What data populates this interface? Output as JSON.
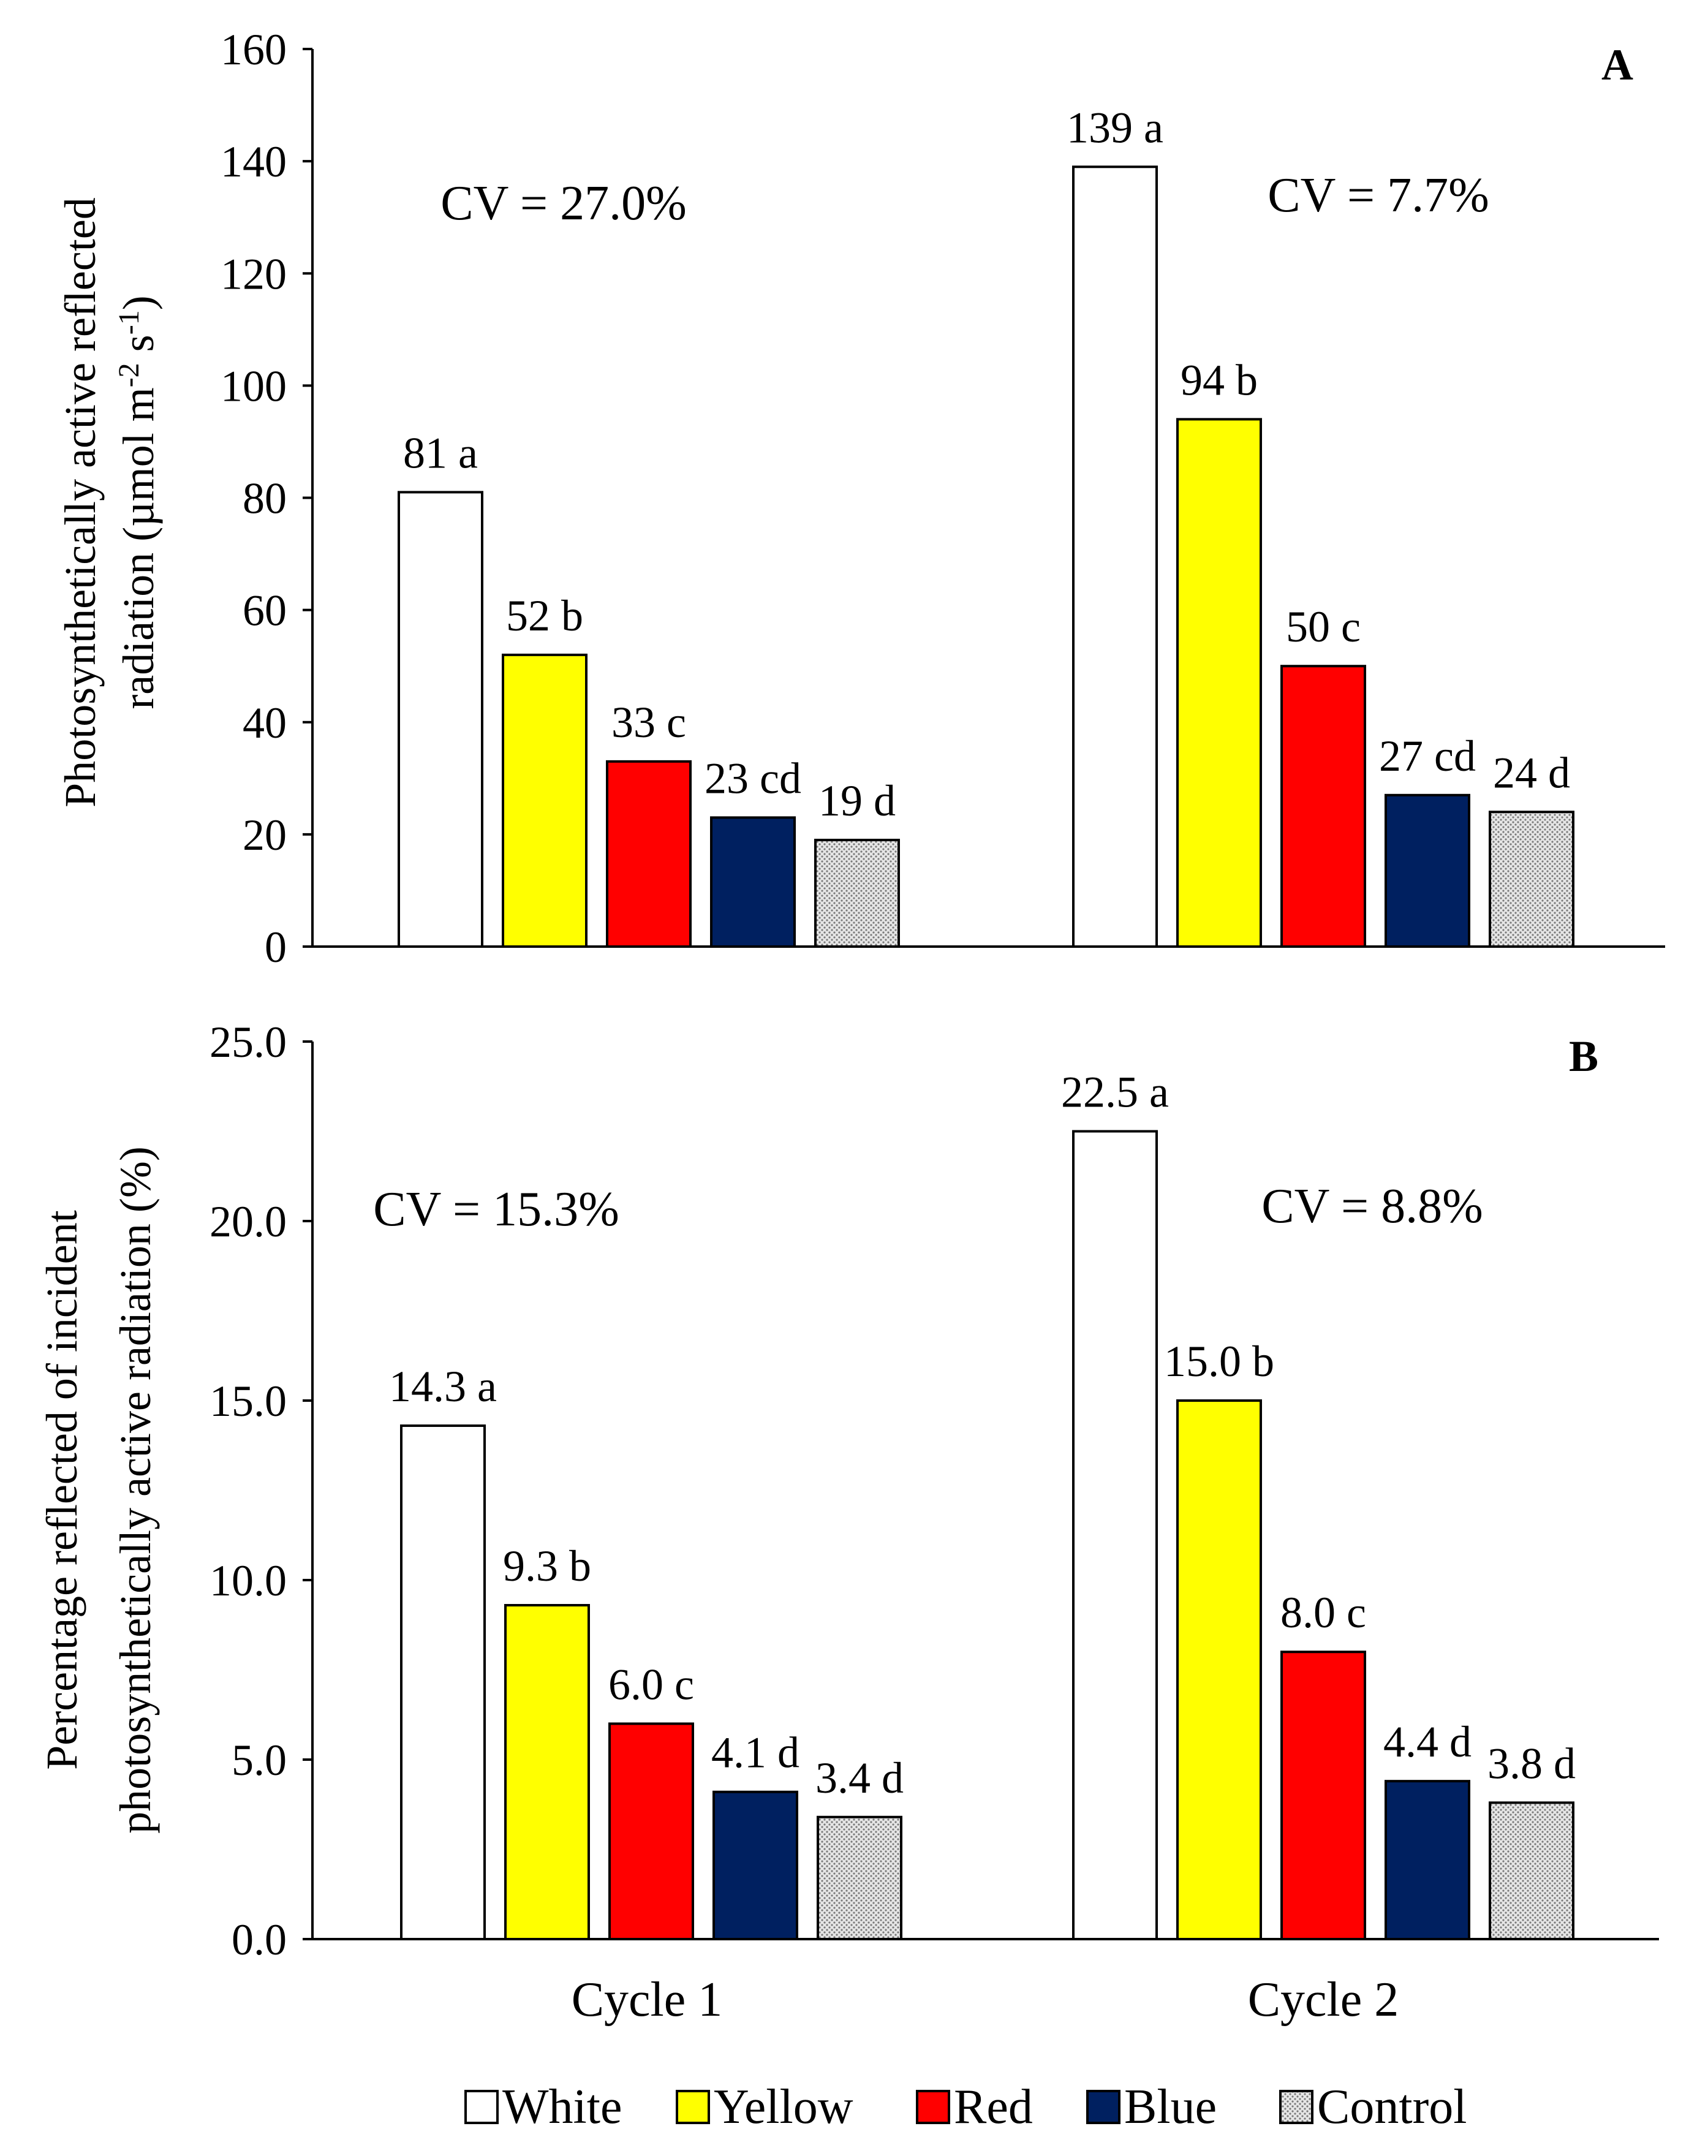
{
  "chart_data": [
    {
      "type": "bar",
      "panel_label": "A",
      "ylabel_lines": [
        "Photosynthetically active reflected",
        "radiation"
      ],
      "ylabel_unit": "(µmol m",
      "ylabel_sup1": "-2",
      "ylabel_mid": " s",
      "ylabel_sup2": "-1",
      "ylabel_end": ")",
      "ylim": [
        0,
        160
      ],
      "yticks": [
        0,
        20,
        40,
        60,
        80,
        100,
        120,
        140,
        160
      ],
      "ytick_labels": [
        "0",
        "20",
        "40",
        "60",
        "80",
        "100",
        "120",
        "140",
        "160"
      ],
      "categories": [
        "Cycle 1",
        "Cycle 2"
      ],
      "series": [
        {
          "name": "White",
          "values": [
            81,
            139
          ],
          "labels": [
            "81 a",
            "139 a"
          ]
        },
        {
          "name": "Yellow",
          "values": [
            52,
            94
          ],
          "labels": [
            "52 b",
            "94 b"
          ]
        },
        {
          "name": "Red",
          "values": [
            33,
            50
          ],
          "labels": [
            "33 c",
            "50 c"
          ]
        },
        {
          "name": "Blue",
          "values": [
            23,
            27
          ],
          "labels": [
            "23 cd",
            "27 cd"
          ]
        },
        {
          "name": "Control",
          "values": [
            19,
            24
          ],
          "labels": [
            "19 d",
            "24 d"
          ]
        }
      ],
      "annotations": [
        "CV = 27.0%",
        "CV = 7.7%"
      ]
    },
    {
      "type": "bar",
      "panel_label": "B",
      "ylabel_lines": [
        "Percentage reflected of incident",
        "photosynthetically active radiation (%)"
      ],
      "ylim": [
        0,
        25
      ],
      "yticks": [
        0,
        5,
        10,
        15,
        20,
        25
      ],
      "ytick_labels": [
        "0.0",
        "5.0",
        "10.0",
        "15.0",
        "20.0",
        "25.0"
      ],
      "categories": [
        "Cycle 1",
        "Cycle 2"
      ],
      "series": [
        {
          "name": "White",
          "values": [
            14.3,
            22.5
          ],
          "labels": [
            "14.3 a",
            "22.5 a"
          ]
        },
        {
          "name": "Yellow",
          "values": [
            9.3,
            15.0
          ],
          "labels": [
            "9.3 b",
            "15.0 b"
          ]
        },
        {
          "name": "Red",
          "values": [
            6.0,
            8.0
          ],
          "labels": [
            "6.0 c",
            "8.0 c"
          ]
        },
        {
          "name": "Blue",
          "values": [
            4.1,
            4.4
          ],
          "labels": [
            "4.1 d",
            "4.4 d"
          ]
        },
        {
          "name": "Control",
          "values": [
            3.4,
            3.8
          ],
          "labels": [
            "3.4 d",
            "3.8 d"
          ]
        }
      ],
      "annotations": [
        "CV = 15.3%",
        "CV = 8.8%"
      ]
    }
  ],
  "legend": [
    "White",
    "Yellow",
    "Red",
    "Blue",
    "Control"
  ],
  "colors": {
    "White": "#ffffff",
    "Yellow": "#ffff00",
    "Red": "#ff0000",
    "Blue": "#002060",
    "Control": "#d9d9d9"
  }
}
